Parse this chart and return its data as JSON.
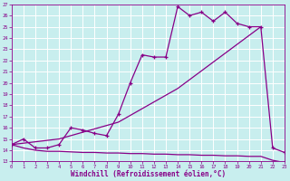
{
  "xlabel": "Windchill (Refroidissement éolien,°C)",
  "xlim": [
    0,
    23
  ],
  "ylim": [
    13,
    27
  ],
  "xticks": [
    0,
    1,
    2,
    3,
    4,
    5,
    6,
    7,
    8,
    9,
    10,
    11,
    12,
    13,
    14,
    15,
    16,
    17,
    18,
    19,
    20,
    21,
    22,
    23
  ],
  "yticks": [
    13,
    14,
    15,
    16,
    17,
    18,
    19,
    20,
    21,
    22,
    23,
    24,
    25,
    26,
    27
  ],
  "bg_color": "#c8eeee",
  "grid_color": "#aadddd",
  "line_color": "#880088",
  "line1_x": [
    0,
    1,
    2,
    3,
    4,
    5,
    6,
    7,
    8,
    9,
    10,
    11,
    12,
    13,
    14,
    15,
    16,
    17,
    18,
    19,
    20,
    21,
    22,
    23
  ],
  "line1_y": [
    14.5,
    15.0,
    14.2,
    14.2,
    14.5,
    16.0,
    15.8,
    15.5,
    15.3,
    17.2,
    20.0,
    22.5,
    22.3,
    22.3,
    26.8,
    26.0,
    26.3,
    25.5,
    26.3,
    25.3,
    25.0,
    25.0,
    14.2,
    13.8
  ],
  "line2_x": [
    0,
    4,
    9,
    14,
    21
  ],
  "line2_y": [
    14.5,
    15.0,
    16.5,
    19.5,
    25.0
  ],
  "line3_x": [
    0,
    1,
    2,
    3,
    4,
    5,
    6,
    7,
    8,
    9,
    10,
    11,
    12,
    13,
    14,
    15,
    16,
    17,
    18,
    19,
    20,
    21,
    22,
    23
  ],
  "line3_y": [
    14.5,
    14.2,
    14.0,
    13.9,
    13.9,
    13.85,
    13.8,
    13.8,
    13.75,
    13.75,
    13.7,
    13.7,
    13.65,
    13.65,
    13.6,
    13.6,
    13.55,
    13.55,
    13.5,
    13.5,
    13.45,
    13.45,
    13.1,
    12.9
  ]
}
